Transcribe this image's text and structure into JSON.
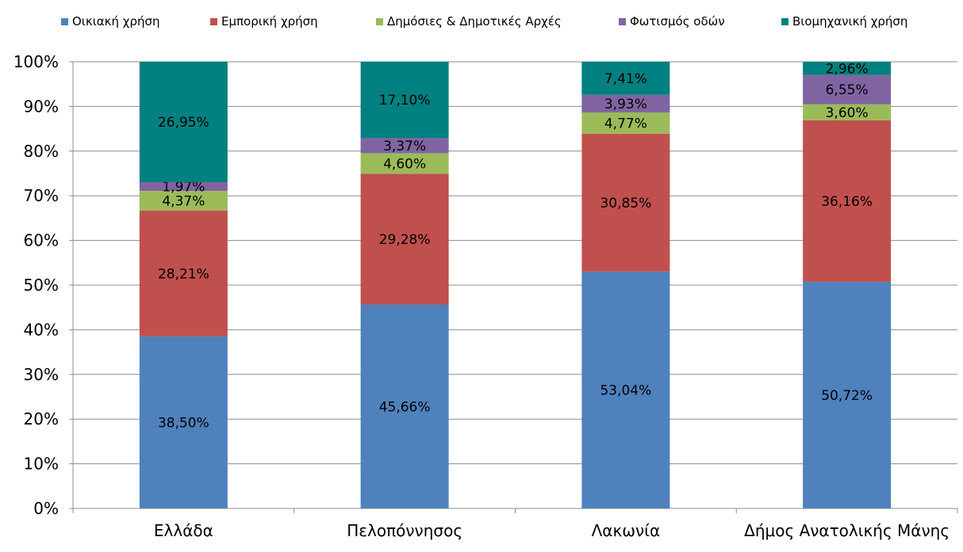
{
  "chart_data": {
    "type": "bar",
    "stacked": true,
    "percent_stacked": true,
    "categories": [
      "Ελλάδα",
      "Πελοπόννησος",
      "Λακωνία",
      "Δήμος Ανατολικής Μάνης"
    ],
    "series": [
      {
        "name": "Οικιακή χρήση",
        "color": "#4F81BD",
        "values": [
          38.5,
          45.66,
          53.04,
          50.72
        ],
        "labels": [
          "38,50%",
          "45,66%",
          "53,04%",
          "50,72%"
        ]
      },
      {
        "name": "Εμπορική χρήση",
        "color": "#C0504D",
        "values": [
          28.21,
          29.28,
          30.85,
          36.16
        ],
        "labels": [
          "28,21%",
          "29,28%",
          "30,85%",
          "36,16%"
        ]
      },
      {
        "name": "Δημόσιες & Δημοτικές Αρχές",
        "color": "#9BBB59",
        "values": [
          4.37,
          4.6,
          4.77,
          3.6
        ],
        "labels": [
          "4,37%",
          "4,60%",
          "4,77%",
          "3,60%"
        ]
      },
      {
        "name": "Φωτισμός οδών",
        "color": "#8064A2",
        "values": [
          1.97,
          3.37,
          3.93,
          6.55
        ],
        "labels": [
          "1,97%",
          "3,37%",
          "3,93%",
          "6,55%"
        ]
      },
      {
        "name": "Βιομηχανική χρήση",
        "color": "#008080",
        "values": [
          26.95,
          17.1,
          7.41,
          2.96
        ],
        "labels": [
          "26,95%",
          "17,10%",
          "7,41%",
          "2,96%"
        ]
      }
    ],
    "y_ticks": [
      "0%",
      "10%",
      "20%",
      "30%",
      "40%",
      "50%",
      "60%",
      "70%",
      "80%",
      "90%",
      "100%"
    ],
    "ylim": [
      0,
      100
    ],
    "grid": true,
    "legend_position": "top"
  }
}
